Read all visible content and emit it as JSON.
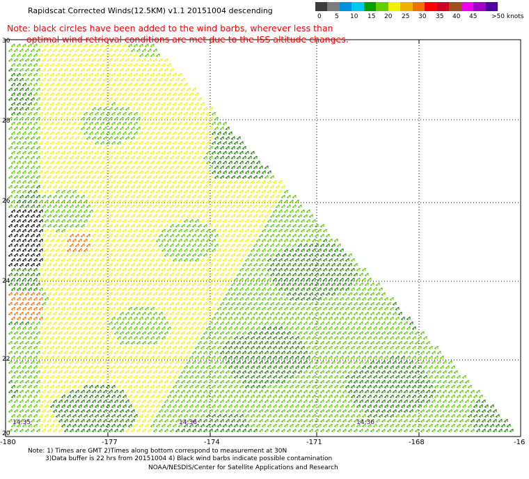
{
  "title": "Rapidscat Corrected Winds(12.5KM) v1.1 20151004 descending",
  "note_line1": "Note: black circles have been added to the wind barbs, wherever less than",
  "note_line2": "optimal wind retrieval conditions are met due to the ISS altitude changes.",
  "legend": {
    "labels": [
      "0",
      "5",
      "10",
      "15",
      "20",
      "25",
      "30",
      "35",
      "40",
      "45",
      ">50 knots"
    ],
    "colors": [
      "#3c3c3c",
      "#7c7c7c",
      "#0090e0",
      "#00c8f0",
      "#00a000",
      "#60d000",
      "#f0f000",
      "#f0b000",
      "#f07000",
      "#ff0000",
      "#d00020",
      "#a05020",
      "#f000f0",
      "#a000c8",
      "#5000a0"
    ]
  },
  "lat_ticks": [
    "30",
    "28",
    "26",
    "24",
    "22",
    "20"
  ],
  "lon_ticks": [
    "-180",
    "-177",
    "-174",
    "-171",
    "-168",
    "-16"
  ],
  "time_labels": [
    "14:35",
    "14:36",
    "14:36"
  ],
  "footer_line1": "Note: 1) Times are GMT 2)Times along bottom correspond to measurement at 30N",
  "footer_line2": "3)Data buffer is 22 hrs from 20151004 4) Black wind barbs indicate possible contamination",
  "credit": "NOAA/NESDIS/Center for Satellite Applications and Research",
  "swath_colors": {
    "light_green": "#58c000",
    "dark_green": "#1a7a00",
    "yellow": "#f0f000",
    "orange": "#e07000",
    "black": "#000000",
    "blue": "#0000c0"
  }
}
